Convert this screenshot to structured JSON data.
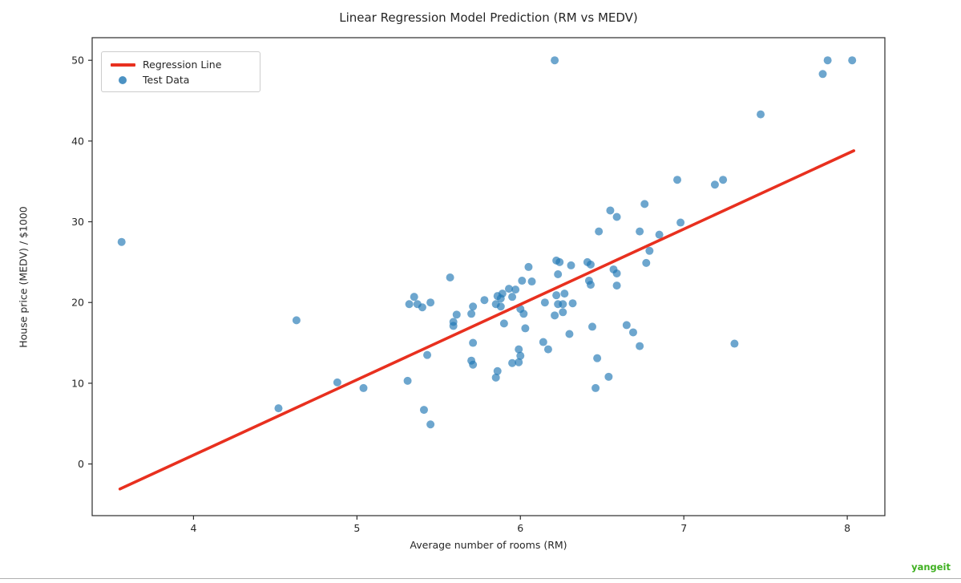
{
  "figure": {
    "title": "Linear Regression Model Prediction (RM vs MEDV)",
    "xlabel": "Average number of rooms (RM)",
    "ylabel": "House price (MEDV) / $1000"
  },
  "legend": {
    "items": [
      {
        "label": "Regression Line",
        "type": "line",
        "color": "#e8301f"
      },
      {
        "label": "Test Data",
        "type": "marker",
        "color": "#1f77b4"
      }
    ]
  },
  "watermark": {
    "text": "yangeit",
    "color": "#3fb021"
  },
  "chart_data": {
    "type": "scatter",
    "title": "Linear Regression Model Prediction (RM vs MEDV)",
    "xlabel": "Average number of rooms (RM)",
    "ylabel": "House price (MEDV) / $1000",
    "xlim": [
      3.38,
      8.23
    ],
    "ylim": [
      -6.4,
      52.8
    ],
    "xticks": [
      4,
      5,
      6,
      7,
      8
    ],
    "yticks": [
      0,
      10,
      20,
      30,
      40,
      50
    ],
    "grid": false,
    "legend_position": "upper left",
    "series": [
      {
        "name": "Regression Line",
        "type": "line",
        "color": "#e8301f",
        "x": [
          3.55,
          8.04
        ],
        "y": [
          -3.1,
          38.8
        ]
      },
      {
        "name": "Test Data",
        "type": "scatter",
        "color": "#1f77b4",
        "alpha": 0.65,
        "points": [
          [
            3.56,
            27.5
          ],
          [
            4.52,
            6.9
          ],
          [
            4.63,
            17.8
          ],
          [
            4.88,
            10.1
          ],
          [
            5.04,
            9.4
          ],
          [
            5.31,
            10.3
          ],
          [
            5.32,
            19.8
          ],
          [
            5.35,
            20.7
          ],
          [
            5.37,
            19.8
          ],
          [
            5.4,
            19.4
          ],
          [
            5.41,
            6.7
          ],
          [
            5.43,
            13.5
          ],
          [
            5.45,
            20.0
          ],
          [
            5.45,
            4.9
          ],
          [
            5.57,
            23.1
          ],
          [
            5.59,
            17.6
          ],
          [
            5.59,
            17.1
          ],
          [
            5.61,
            18.5
          ],
          [
            5.7,
            18.6
          ],
          [
            5.7,
            12.8
          ],
          [
            5.71,
            19.5
          ],
          [
            5.71,
            15.0
          ],
          [
            5.71,
            12.3
          ],
          [
            5.78,
            20.3
          ],
          [
            5.85,
            19.8
          ],
          [
            5.85,
            10.7
          ],
          [
            5.86,
            20.8
          ],
          [
            5.86,
            11.5
          ],
          [
            5.88,
            20.5
          ],
          [
            5.88,
            19.5
          ],
          [
            5.89,
            21.1
          ],
          [
            5.9,
            17.4
          ],
          [
            5.93,
            21.7
          ],
          [
            5.95,
            20.7
          ],
          [
            5.95,
            12.5
          ],
          [
            5.97,
            21.6
          ],
          [
            5.99,
            14.2
          ],
          [
            5.99,
            12.6
          ],
          [
            6.0,
            19.2
          ],
          [
            6.0,
            13.4
          ],
          [
            6.01,
            22.7
          ],
          [
            6.02,
            18.6
          ],
          [
            6.03,
            16.8
          ],
          [
            6.05,
            24.4
          ],
          [
            6.07,
            22.6
          ],
          [
            6.14,
            15.1
          ],
          [
            6.15,
            20.0
          ],
          [
            6.17,
            14.2
          ],
          [
            6.21,
            50.0
          ],
          [
            6.21,
            18.4
          ],
          [
            6.22,
            25.2
          ],
          [
            6.22,
            20.9
          ],
          [
            6.23,
            23.5
          ],
          [
            6.23,
            19.8
          ],
          [
            6.24,
            25.0
          ],
          [
            6.26,
            19.8
          ],
          [
            6.26,
            18.8
          ],
          [
            6.27,
            21.1
          ],
          [
            6.3,
            16.1
          ],
          [
            6.31,
            24.6
          ],
          [
            6.32,
            19.9
          ],
          [
            6.41,
            25.0
          ],
          [
            6.42,
            22.7
          ],
          [
            6.43,
            24.7
          ],
          [
            6.43,
            22.2
          ],
          [
            6.44,
            17.0
          ],
          [
            6.46,
            9.4
          ],
          [
            6.47,
            13.1
          ],
          [
            6.48,
            28.8
          ],
          [
            6.54,
            10.8
          ],
          [
            6.55,
            31.4
          ],
          [
            6.57,
            24.1
          ],
          [
            6.59,
            30.6
          ],
          [
            6.59,
            23.6
          ],
          [
            6.59,
            22.1
          ],
          [
            6.65,
            17.2
          ],
          [
            6.69,
            16.3
          ],
          [
            6.73,
            28.8
          ],
          [
            6.73,
            14.6
          ],
          [
            6.76,
            32.2
          ],
          [
            6.77,
            24.9
          ],
          [
            6.79,
            26.4
          ],
          [
            6.85,
            28.4
          ],
          [
            6.96,
            35.2
          ],
          [
            6.98,
            29.9
          ],
          [
            7.19,
            34.6
          ],
          [
            7.24,
            35.2
          ],
          [
            7.31,
            14.9
          ],
          [
            7.47,
            43.3
          ],
          [
            7.85,
            48.3
          ],
          [
            7.88,
            50.0
          ],
          [
            8.03,
            50.0
          ]
        ]
      }
    ]
  }
}
